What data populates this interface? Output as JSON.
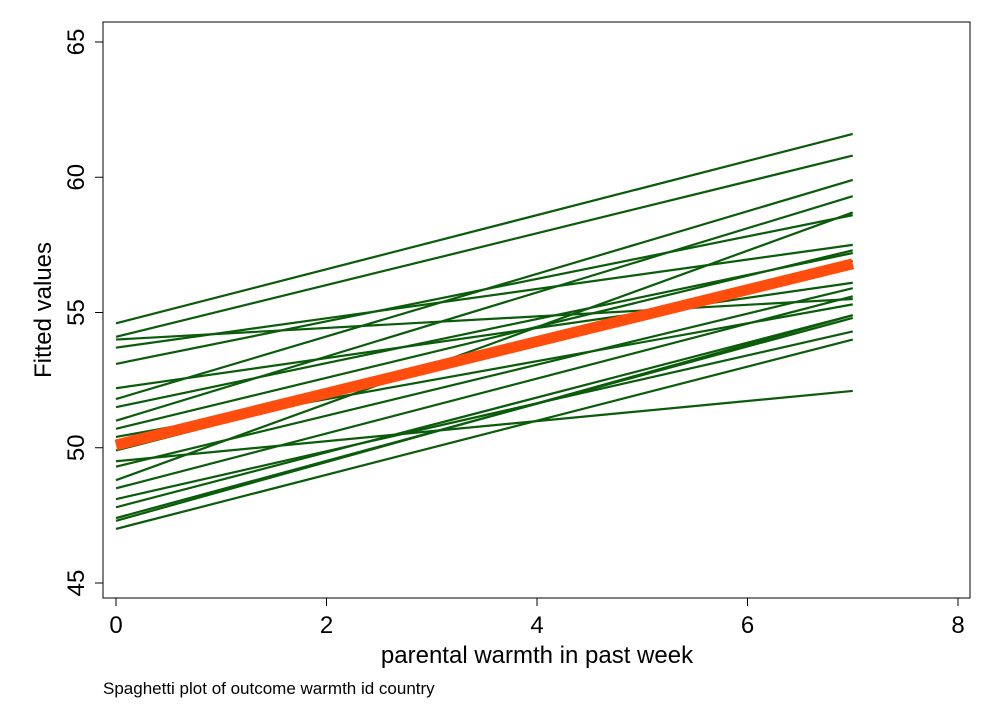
{
  "chart_data": {
    "type": "line",
    "xlabel": "parental warmth in past week",
    "ylabel": "Fitted values",
    "note": "Spaghetti plot of outcome warmth id country",
    "xlim": [
      0,
      8
    ],
    "ylim": [
      45,
      65
    ],
    "xticks": [
      "0",
      "2",
      "4",
      "6",
      "8"
    ],
    "yticks": [
      "45",
      "50",
      "55",
      "60",
      "65"
    ],
    "grid": false,
    "legend": "none",
    "colors": {
      "individual": "#0a5c0a",
      "overall": "#ff4d0d"
    },
    "x": [
      0,
      7
    ],
    "series": [
      {
        "values": [
          54.6,
          61.6
        ]
      },
      {
        "values": [
          54.1,
          60.8
        ]
      },
      {
        "values": [
          54.0,
          55.5
        ]
      },
      {
        "values": [
          53.7,
          57.5
        ]
      },
      {
        "values": [
          53.1,
          58.6
        ]
      },
      {
        "values": [
          52.2,
          56.1
        ]
      },
      {
        "values": [
          51.8,
          59.9
        ]
      },
      {
        "values": [
          51.5,
          57.2
        ]
      },
      {
        "values": [
          51.0,
          59.3
        ]
      },
      {
        "values": [
          50.7,
          57.3
        ]
      },
      {
        "values": [
          50.4,
          55.3
        ]
      },
      {
        "values": [
          49.9,
          56.9
        ]
      },
      {
        "values": [
          49.5,
          52.1
        ]
      },
      {
        "values": [
          49.3,
          55.9
        ]
      },
      {
        "values": [
          48.8,
          58.7
        ]
      },
      {
        "values": [
          48.5,
          55.6
        ]
      },
      {
        "values": [
          48.1,
          54.3
        ]
      },
      {
        "values": [
          47.8,
          54.9
        ]
      },
      {
        "values": [
          47.4,
          54.8
        ]
      },
      {
        "values": [
          47.3,
          54.9
        ]
      },
      {
        "values": [
          47.0,
          54.0
        ]
      }
    ],
    "overall": {
      "values": [
        50.1,
        56.8
      ]
    }
  }
}
